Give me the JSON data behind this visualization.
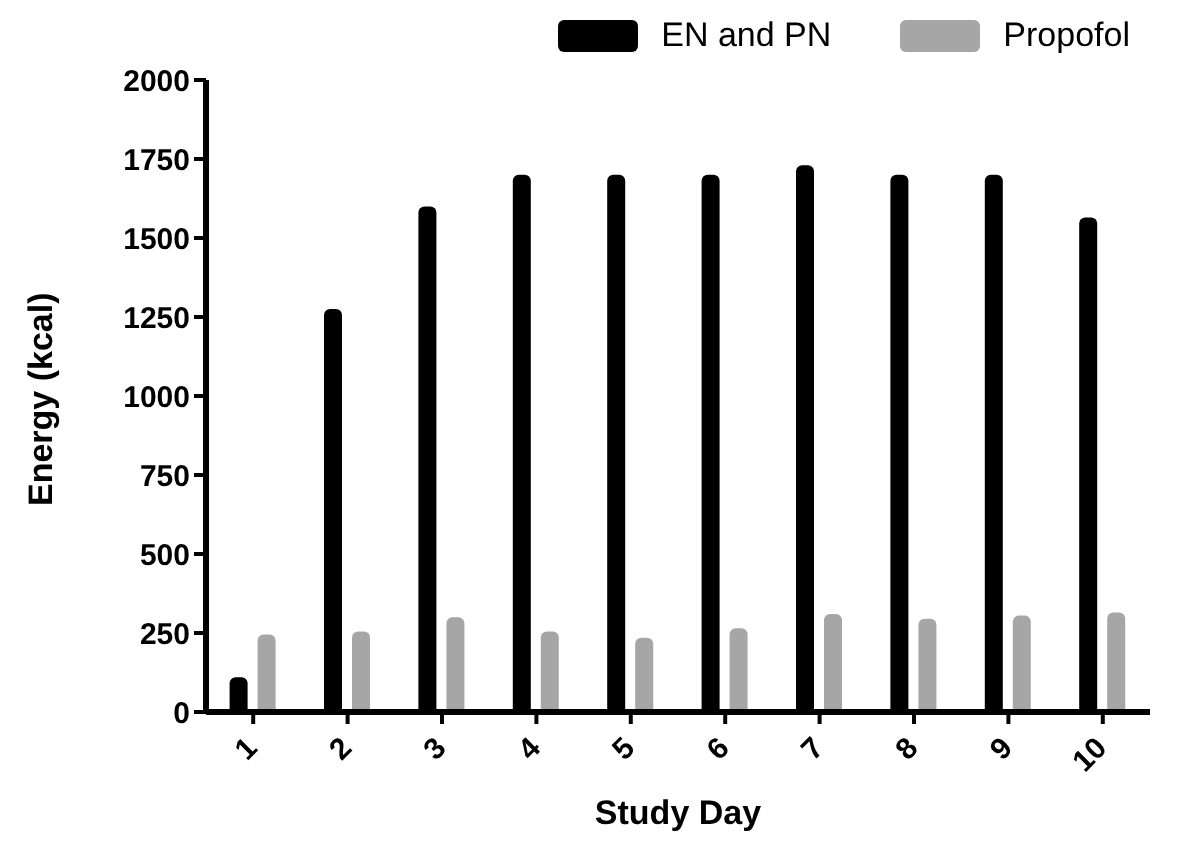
{
  "chart_data": {
    "type": "bar",
    "xlabel": "Study Day",
    "ylabel": "Energy (kcal)",
    "categories": [
      "1",
      "2",
      "3",
      "4",
      "5",
      "6",
      "7",
      "8",
      "9",
      "10"
    ],
    "series": [
      {
        "name": "EN and PN",
        "color": "#000000",
        "values": [
          110,
          1275,
          1600,
          1700,
          1700,
          1700,
          1730,
          1700,
          1700,
          1565
        ]
      },
      {
        "name": "Propofol",
        "color": "#a6a6a6",
        "values": [
          245,
          255,
          300,
          255,
          235,
          265,
          310,
          295,
          305,
          315
        ]
      }
    ],
    "ylim": [
      0,
      2000
    ],
    "yticks": [
      0,
      250,
      500,
      750,
      1000,
      1250,
      1500,
      1750,
      2000
    ],
    "grid": false,
    "legend": "top right"
  }
}
